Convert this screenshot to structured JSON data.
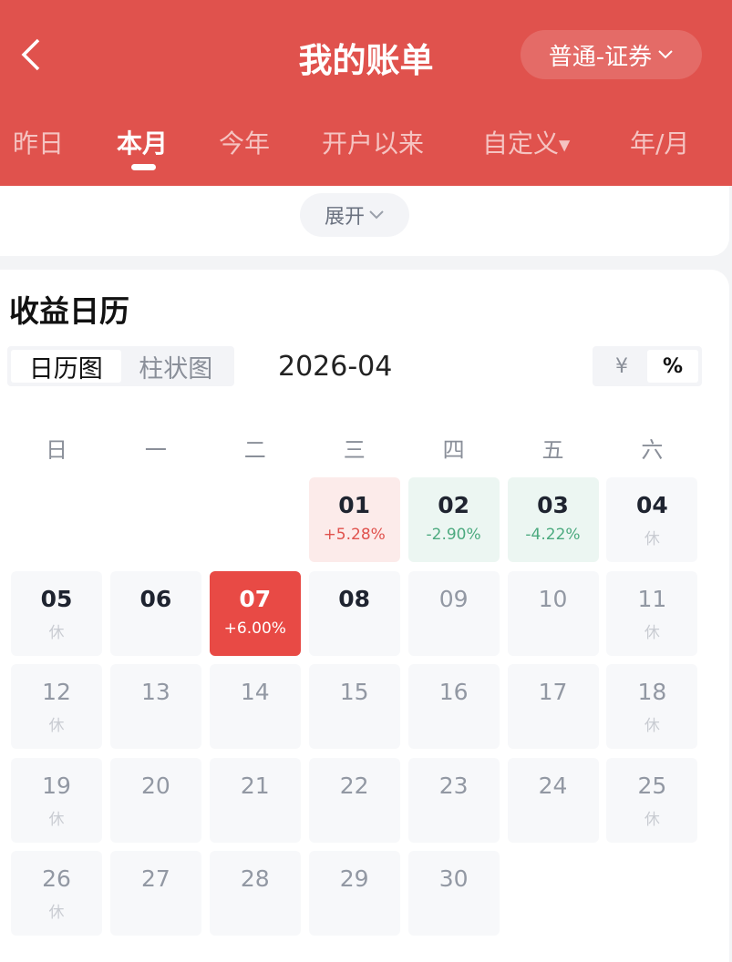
{
  "header": {
    "title": "我的账单",
    "account": "普通-证券"
  },
  "tabs": [
    "昨日",
    "本月",
    "今年",
    "开户以来",
    "自定义",
    "年/月"
  ],
  "active_tab": "本月",
  "expand_label": "展开",
  "section_title": "收益日历",
  "view_toggle": [
    "日历图",
    "柱状图"
  ],
  "month": "2026-04",
  "unit_toggle": [
    "¥",
    "%"
  ],
  "weekdays": [
    "日",
    "一",
    "二",
    "三",
    "四",
    "五",
    "六"
  ],
  "colors": {
    "brand": "#e0524d",
    "up": "#e0524d",
    "down": "#4caa7f"
  },
  "days": [
    {
      "d": "01",
      "s": "+5.28%",
      "t": "up"
    },
    {
      "d": "02",
      "s": "-2.90%",
      "t": "down"
    },
    {
      "d": "03",
      "s": "-4.22%",
      "t": "down"
    },
    {
      "d": "04",
      "s": "休",
      "t": "rest"
    },
    {
      "d": "05",
      "s": "休",
      "t": "rest"
    },
    {
      "d": "06",
      "s": "",
      "t": "plain"
    },
    {
      "d": "07",
      "s": "+6.00%",
      "t": "hot"
    },
    {
      "d": "08",
      "s": "",
      "t": "plain"
    },
    {
      "d": "09",
      "s": "",
      "t": "fut"
    },
    {
      "d": "10",
      "s": "",
      "t": "fut"
    },
    {
      "d": "11",
      "s": "休",
      "t": "fut"
    },
    {
      "d": "12",
      "s": "休",
      "t": "fut"
    },
    {
      "d": "13",
      "s": "",
      "t": "fut"
    },
    {
      "d": "14",
      "s": "",
      "t": "fut"
    },
    {
      "d": "15",
      "s": "",
      "t": "fut"
    },
    {
      "d": "16",
      "s": "",
      "t": "fut"
    },
    {
      "d": "17",
      "s": "",
      "t": "fut"
    },
    {
      "d": "18",
      "s": "休",
      "t": "fut"
    },
    {
      "d": "19",
      "s": "休",
      "t": "fut"
    },
    {
      "d": "20",
      "s": "",
      "t": "fut"
    },
    {
      "d": "21",
      "s": "",
      "t": "fut"
    },
    {
      "d": "22",
      "s": "",
      "t": "fut"
    },
    {
      "d": "23",
      "s": "",
      "t": "fut"
    },
    {
      "d": "24",
      "s": "",
      "t": "fut"
    },
    {
      "d": "25",
      "s": "休",
      "t": "fut"
    },
    {
      "d": "26",
      "s": "休",
      "t": "fut"
    },
    {
      "d": "27",
      "s": "",
      "t": "fut"
    },
    {
      "d": "28",
      "s": "",
      "t": "fut"
    },
    {
      "d": "29",
      "s": "",
      "t": "fut"
    },
    {
      "d": "30",
      "s": "",
      "t": "fut"
    }
  ]
}
